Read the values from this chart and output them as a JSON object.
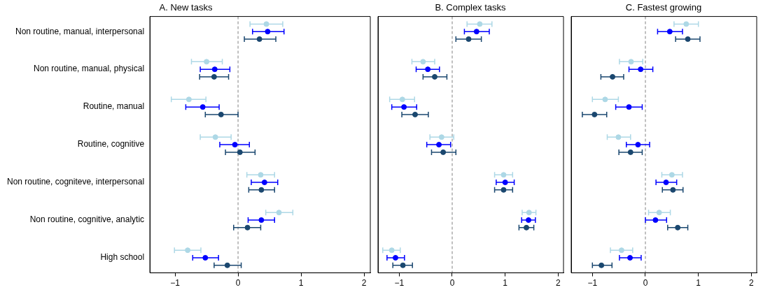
{
  "chart_data": [
    {
      "type": "scatter",
      "title": "A. New tasks",
      "orientation": "horizontal",
      "marker": "circle",
      "grid": false,
      "legend": false,
      "categories": [
        "Non routine, manual, interpersonal",
        "Non routine, manual, physical",
        "Routine, manual",
        "Routine, cognitive",
        "Non routine, cogniteve, interpersonal",
        "Non routine, cognitive, analytic",
        "High school"
      ],
      "xlim": [
        -1.4,
        2.1
      ],
      "xticks": [
        -1,
        0,
        1,
        2
      ],
      "ref_lines": [
        {
          "axis": "x",
          "value": 0,
          "color": "#808080",
          "line_style": "dashed"
        }
      ],
      "series": [
        {
          "color": "#add8e6",
          "values": [
            0.45,
            -0.5,
            -0.78,
            -0.36,
            0.36,
            0.65,
            -0.8
          ],
          "errors": [
            [
              0.19,
              0.71
            ],
            [
              -0.74,
              -0.25
            ],
            [
              -1.06,
              -0.51
            ],
            [
              -0.6,
              -0.11
            ],
            [
              0.14,
              0.58
            ],
            [
              0.44,
              0.87
            ],
            [
              -1.01,
              -0.59
            ]
          ]
        },
        {
          "color": "#0000ff",
          "values": [
            0.47,
            -0.37,
            -0.56,
            -0.05,
            0.42,
            0.37,
            -0.52
          ],
          "errors": [
            [
              0.23,
              0.73
            ],
            [
              -0.6,
              -0.13
            ],
            [
              -0.83,
              -0.3
            ],
            [
              -0.29,
              0.18
            ],
            [
              0.21,
              0.63
            ],
            [
              0.16,
              0.58
            ],
            [
              -0.72,
              -0.31
            ]
          ]
        },
        {
          "color": "#1a476f",
          "values": [
            0.34,
            -0.38,
            -0.27,
            0.03,
            0.37,
            0.15,
            -0.17
          ],
          "errors": [
            [
              0.1,
              0.6
            ],
            [
              -0.61,
              -0.15
            ],
            [
              -0.52,
              0
            ],
            [
              -0.2,
              0.27
            ],
            [
              0.17,
              0.58
            ],
            [
              -0.07,
              0.36
            ],
            [
              -0.38,
              0.05
            ]
          ]
        }
      ]
    },
    {
      "type": "scatter",
      "title": "B. Complex tasks",
      "orientation": "horizontal",
      "marker": "circle",
      "grid": false,
      "legend": false,
      "tick_labels": "x",
      "categories": [
        null,
        null,
        null,
        null,
        null,
        null,
        null
      ],
      "xlim": [
        -1.4,
        2.1
      ],
      "xticks": [
        -1,
        0,
        1,
        2
      ],
      "ref_lines": [
        {
          "axis": "x",
          "value": 0,
          "color": "#808080",
          "line_style": "dashed"
        }
      ],
      "series": [
        {
          "color": "#add8e6",
          "values": [
            0.52,
            -0.55,
            -0.94,
            -0.2,
            0.97,
            1.45,
            -1.14
          ],
          "errors": [
            [
              0.28,
              0.75
            ],
            [
              -0.76,
              -0.33
            ],
            [
              -1.18,
              -0.71
            ],
            [
              -0.42,
              0.03
            ],
            [
              0.8,
              1.14
            ],
            [
              1.32,
              1.58
            ],
            [
              -1.31,
              -0.98
            ]
          ]
        },
        {
          "color": "#0000ff",
          "values": [
            0.46,
            -0.46,
            -0.91,
            -0.25,
            1.0,
            1.44,
            -1.07
          ],
          "errors": [
            [
              0.23,
              0.7
            ],
            [
              -0.68,
              -0.24
            ],
            [
              -1.14,
              -0.67
            ],
            [
              -0.48,
              -0.03
            ],
            [
              0.83,
              1.17
            ],
            [
              1.31,
              1.57
            ],
            [
              -1.23,
              -0.9
            ]
          ]
        },
        {
          "color": "#1a476f",
          "values": [
            0.31,
            -0.33,
            -0.7,
            -0.17,
            0.97,
            1.4,
            -0.93
          ],
          "errors": [
            [
              0.07,
              0.55
            ],
            [
              -0.55,
              -0.1
            ],
            [
              -0.95,
              -0.45
            ],
            [
              -0.39,
              0.07
            ],
            [
              0.8,
              1.14
            ],
            [
              1.26,
              1.54
            ],
            [
              -1.12,
              -0.75
            ]
          ]
        }
      ]
    },
    {
      "type": "scatter",
      "title": "C. Fastest growing",
      "orientation": "horizontal",
      "marker": "circle",
      "grid": false,
      "legend": false,
      "tick_labels": "x",
      "categories": [
        null,
        null,
        null,
        null,
        null,
        null,
        null
      ],
      "xlim": [
        -1.4,
        2.1
      ],
      "xticks": [
        -1,
        0,
        1,
        2
      ],
      "ref_lines": [
        {
          "axis": "x",
          "value": 0,
          "color": "#808080",
          "line_style": "dashed"
        }
      ],
      "series": [
        {
          "color": "#add8e6",
          "values": [
            0.77,
            -0.27,
            -0.76,
            -0.51,
            0.5,
            0.26,
            -0.45
          ],
          "errors": [
            [
              0.54,
              1.0
            ],
            [
              -0.49,
              -0.05
            ],
            [
              -1.0,
              -0.51
            ],
            [
              -0.72,
              -0.28
            ],
            [
              0.31,
              0.7
            ],
            [
              0.06,
              0.47
            ],
            [
              -0.66,
              -0.24
            ]
          ]
        },
        {
          "color": "#0000ff",
          "values": [
            0.46,
            -0.09,
            -0.31,
            -0.14,
            0.39,
            0.19,
            -0.29
          ],
          "errors": [
            [
              0.23,
              0.7
            ],
            [
              -0.31,
              0.14
            ],
            [
              -0.56,
              -0.06
            ],
            [
              -0.36,
              0.08
            ],
            [
              0.2,
              0.59
            ],
            [
              0,
              0.4
            ],
            [
              -0.49,
              -0.08
            ]
          ]
        },
        {
          "color": "#1a476f",
          "values": [
            0.8,
            -0.62,
            -0.96,
            -0.28,
            0.52,
            0.61,
            -0.83
          ],
          "errors": [
            [
              0.57,
              1.03
            ],
            [
              -0.84,
              -0.41
            ],
            [
              -1.19,
              -0.73
            ],
            [
              -0.5,
              -0.06
            ],
            [
              0.32,
              0.71
            ],
            [
              0.42,
              0.8
            ],
            [
              -1.0,
              -0.63
            ]
          ]
        }
      ]
    }
  ]
}
